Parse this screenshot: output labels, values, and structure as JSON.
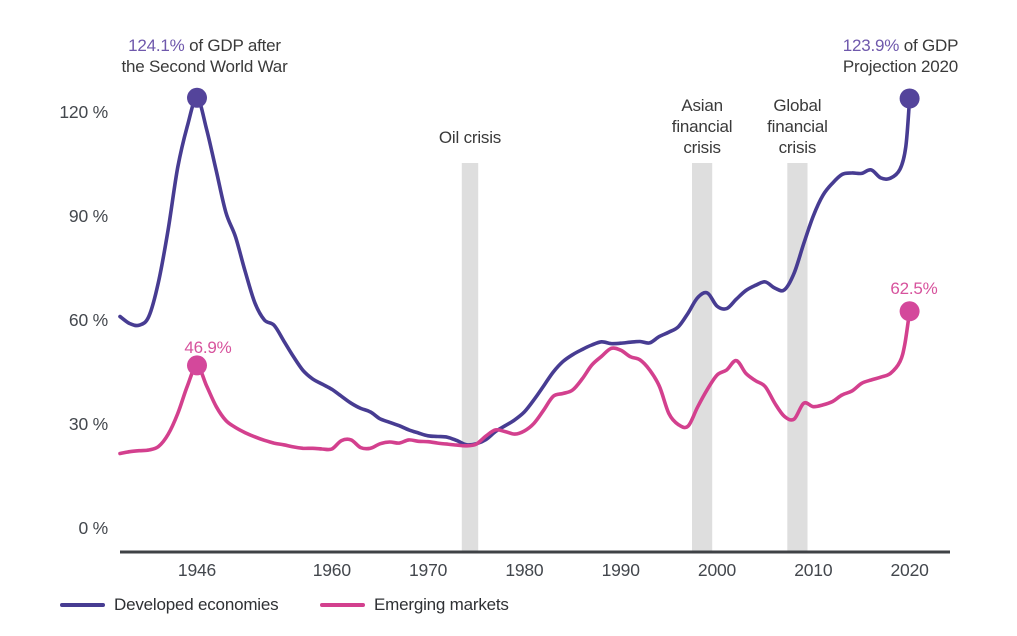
{
  "chart_data": {
    "type": "line",
    "title": "",
    "xlabel": "",
    "ylabel": "",
    "grid": false,
    "legend_position": "bottom-left",
    "xlim": [
      1938,
      2022
    ],
    "ylim": [
      0,
      130
    ],
    "x_ticks": [
      1946,
      1960,
      1970,
      1980,
      1990,
      2000,
      2010,
      2020
    ],
    "y_ticks": [
      {
        "value": 0,
        "label": "0 %"
      },
      {
        "value": 30,
        "label": "30 %"
      },
      {
        "value": 60,
        "label": "60 %"
      },
      {
        "value": 90,
        "label": "90 %"
      },
      {
        "value": 120,
        "label": "120 %"
      }
    ],
    "series": [
      {
        "name": "Developed economies",
        "color": "#473C92",
        "dot_color": "#54449B",
        "points": [
          [
            1938,
            61
          ],
          [
            1939,
            59
          ],
          [
            1940,
            58.5
          ],
          [
            1941,
            61
          ],
          [
            1942,
            71
          ],
          [
            1943,
            86
          ],
          [
            1944,
            104
          ],
          [
            1945,
            116
          ],
          [
            1946,
            124.1
          ],
          [
            1947,
            115
          ],
          [
            1948,
            103
          ],
          [
            1949,
            91
          ],
          [
            1950,
            84
          ],
          [
            1951,
            74
          ],
          [
            1952,
            65
          ],
          [
            1953,
            60
          ],
          [
            1954,
            58.5
          ],
          [
            1955,
            54
          ],
          [
            1956,
            49.5
          ],
          [
            1957,
            45.5
          ],
          [
            1958,
            43
          ],
          [
            1959,
            41.5
          ],
          [
            1960,
            40
          ],
          [
            1961,
            38
          ],
          [
            1962,
            36
          ],
          [
            1963,
            34.5
          ],
          [
            1964,
            33.5
          ],
          [
            1965,
            31.5
          ],
          [
            1966,
            30.5
          ],
          [
            1967,
            29.5
          ],
          [
            1968,
            28.3
          ],
          [
            1969,
            27.4
          ],
          [
            1970,
            26.6
          ],
          [
            1971,
            26.4
          ],
          [
            1972,
            26.2
          ],
          [
            1973,
            25.2
          ],
          [
            1974,
            24
          ],
          [
            1975,
            24.3
          ],
          [
            1976,
            25.5
          ],
          [
            1977,
            27.8
          ],
          [
            1978,
            29.5
          ],
          [
            1979,
            31.2
          ],
          [
            1980,
            33.5
          ],
          [
            1981,
            37
          ],
          [
            1982,
            41
          ],
          [
            1983,
            45
          ],
          [
            1984,
            48
          ],
          [
            1985,
            50
          ],
          [
            1986,
            51.5
          ],
          [
            1987,
            52.8
          ],
          [
            1988,
            53.7
          ],
          [
            1989,
            53.2
          ],
          [
            1990,
            53.3
          ],
          [
            1991,
            53.6
          ],
          [
            1992,
            53.8
          ],
          [
            1993,
            53.4
          ],
          [
            1994,
            55.2
          ],
          [
            1995,
            56.5
          ],
          [
            1996,
            58.1
          ],
          [
            1997,
            62
          ],
          [
            1998,
            66.5
          ],
          [
            1999,
            67.8
          ],
          [
            2000,
            64
          ],
          [
            2001,
            63.3
          ],
          [
            2002,
            66
          ],
          [
            2003,
            68.5
          ],
          [
            2004,
            70
          ],
          [
            2005,
            71
          ],
          [
            2006,
            69.2
          ],
          [
            2007,
            68.7
          ],
          [
            2008,
            73.5
          ],
          [
            2009,
            82
          ],
          [
            2010,
            90
          ],
          [
            2011,
            96
          ],
          [
            2012,
            99.5
          ],
          [
            2013,
            102
          ],
          [
            2014,
            102.4
          ],
          [
            2015,
            102.3
          ],
          [
            2016,
            103.3
          ],
          [
            2017,
            101
          ],
          [
            2018,
            100.9
          ],
          [
            2019,
            103.5
          ],
          [
            2019.6,
            110
          ],
          [
            2020,
            123.9
          ]
        ]
      },
      {
        "name": "Emerging markets",
        "color": "#D3408E",
        "dot_color": "#D4489B",
        "points": [
          [
            1938,
            21.5
          ],
          [
            1939,
            22
          ],
          [
            1940,
            22.3
          ],
          [
            1941,
            22.5
          ],
          [
            1942,
            23.5
          ],
          [
            1943,
            27
          ],
          [
            1944,
            33
          ],
          [
            1945,
            41
          ],
          [
            1946,
            46.9
          ],
          [
            1947,
            41
          ],
          [
            1948,
            35
          ],
          [
            1949,
            31
          ],
          [
            1950,
            29
          ],
          [
            1951,
            27.5
          ],
          [
            1952,
            26.3
          ],
          [
            1953,
            25.3
          ],
          [
            1954,
            24.5
          ],
          [
            1955,
            24
          ],
          [
            1956,
            23.4
          ],
          [
            1957,
            23
          ],
          [
            1958,
            23
          ],
          [
            1959,
            22.8
          ],
          [
            1960,
            22.8
          ],
          [
            1961,
            25.2
          ],
          [
            1962,
            25.4
          ],
          [
            1963,
            23.2
          ],
          [
            1964,
            23
          ],
          [
            1965,
            24.3
          ],
          [
            1966,
            24.8
          ],
          [
            1967,
            24.5
          ],
          [
            1968,
            25.4
          ],
          [
            1969,
            25
          ],
          [
            1970,
            24.9
          ],
          [
            1971,
            24.5
          ],
          [
            1972,
            24.2
          ],
          [
            1973,
            23.9
          ],
          [
            1974,
            23.7
          ],
          [
            1975,
            24.2
          ],
          [
            1976,
            26.5
          ],
          [
            1977,
            28.3
          ],
          [
            1978,
            27.8
          ],
          [
            1979,
            27.1
          ],
          [
            1980,
            28
          ],
          [
            1981,
            30.2
          ],
          [
            1982,
            34
          ],
          [
            1983,
            38
          ],
          [
            1984,
            38.8
          ],
          [
            1985,
            39.8
          ],
          [
            1986,
            43
          ],
          [
            1987,
            47
          ],
          [
            1988,
            49.5
          ],
          [
            1989,
            51.8
          ],
          [
            1990,
            51.3
          ],
          [
            1991,
            49.4
          ],
          [
            1992,
            48.5
          ],
          [
            1993,
            45.6
          ],
          [
            1994,
            41
          ],
          [
            1995,
            33
          ],
          [
            1996,
            29.8
          ],
          [
            1997,
            29.4
          ],
          [
            1998,
            35
          ],
          [
            1999,
            40
          ],
          [
            2000,
            44.1
          ],
          [
            2001,
            45.6
          ],
          [
            2002,
            48.3
          ],
          [
            2003,
            44.6
          ],
          [
            2004,
            42.5
          ],
          [
            2005,
            40.8
          ],
          [
            2006,
            36
          ],
          [
            2007,
            32.2
          ],
          [
            2008,
            31.4
          ],
          [
            2009,
            36
          ],
          [
            2010,
            35
          ],
          [
            2011,
            35.5
          ],
          [
            2012,
            36.5
          ],
          [
            2013,
            38.4
          ],
          [
            2014,
            39.5
          ],
          [
            2015,
            41.7
          ],
          [
            2016,
            42.7
          ],
          [
            2017,
            43.5
          ],
          [
            2018,
            44.6
          ],
          [
            2019,
            48
          ],
          [
            2019.5,
            53
          ],
          [
            2020,
            62.5
          ]
        ]
      }
    ],
    "key_points": [
      {
        "series": "Developed economies",
        "year": 1946,
        "value": 124.1
      },
      {
        "series": "Developed economies",
        "year": 2020,
        "value": 123.9
      },
      {
        "series": "Emerging markets",
        "year": 1946,
        "value": 46.9
      },
      {
        "series": "Emerging markets",
        "year": 2020,
        "value": 62.5
      }
    ],
    "event_bands": [
      {
        "label": "Oil crisis",
        "year_start": 1973.5,
        "year_end": 1975.2
      },
      {
        "label": "Asian\nfinancial\ncrisis",
        "year_start": 1997.4,
        "year_end": 1999.5
      },
      {
        "label": "Global\nfinancial\ncrisis",
        "year_start": 2007.3,
        "year_end": 2009.4
      }
    ]
  },
  "annotations": {
    "dev_1946": {
      "value": "124.1%",
      "text1": " of GDP after",
      "text2": "the Second World War"
    },
    "dev_2020": {
      "value": "123.9%",
      "text1": " of GDP",
      "text2": "Projection 2020"
    },
    "em_1946": {
      "value": "46.9%"
    },
    "em_2020": {
      "value": "62.5%"
    }
  },
  "colors": {
    "axis_line": "#3F4246",
    "event_band": "#DEDEDE",
    "tick_text": "#43474D",
    "annotation_text": "#3A3A3A",
    "developed": "#473C92",
    "emerging": "#D3408E"
  }
}
